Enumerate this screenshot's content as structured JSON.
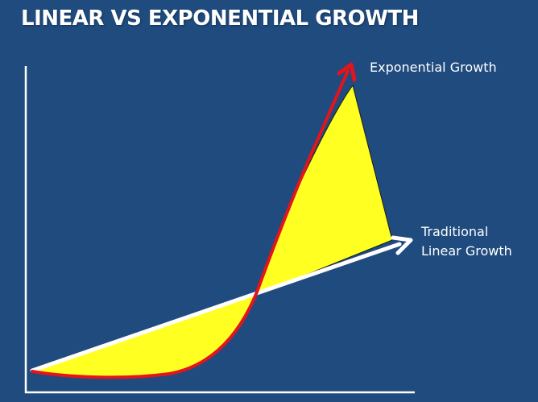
{
  "slide": {
    "title": "LINEAR VS EXPONENTIAL GROWTH"
  },
  "diagram": {
    "exponential_label": "Exponential Growth",
    "linear_label_line1": "Traditional",
    "linear_label_line2": "Linear Growth",
    "colors": {
      "background": "#1f4b7e",
      "exponential_curve": "#e3141b",
      "linear_arrow": "#ffffff",
      "gap_fill": "#ffff22",
      "axes": "#ffffff"
    }
  }
}
